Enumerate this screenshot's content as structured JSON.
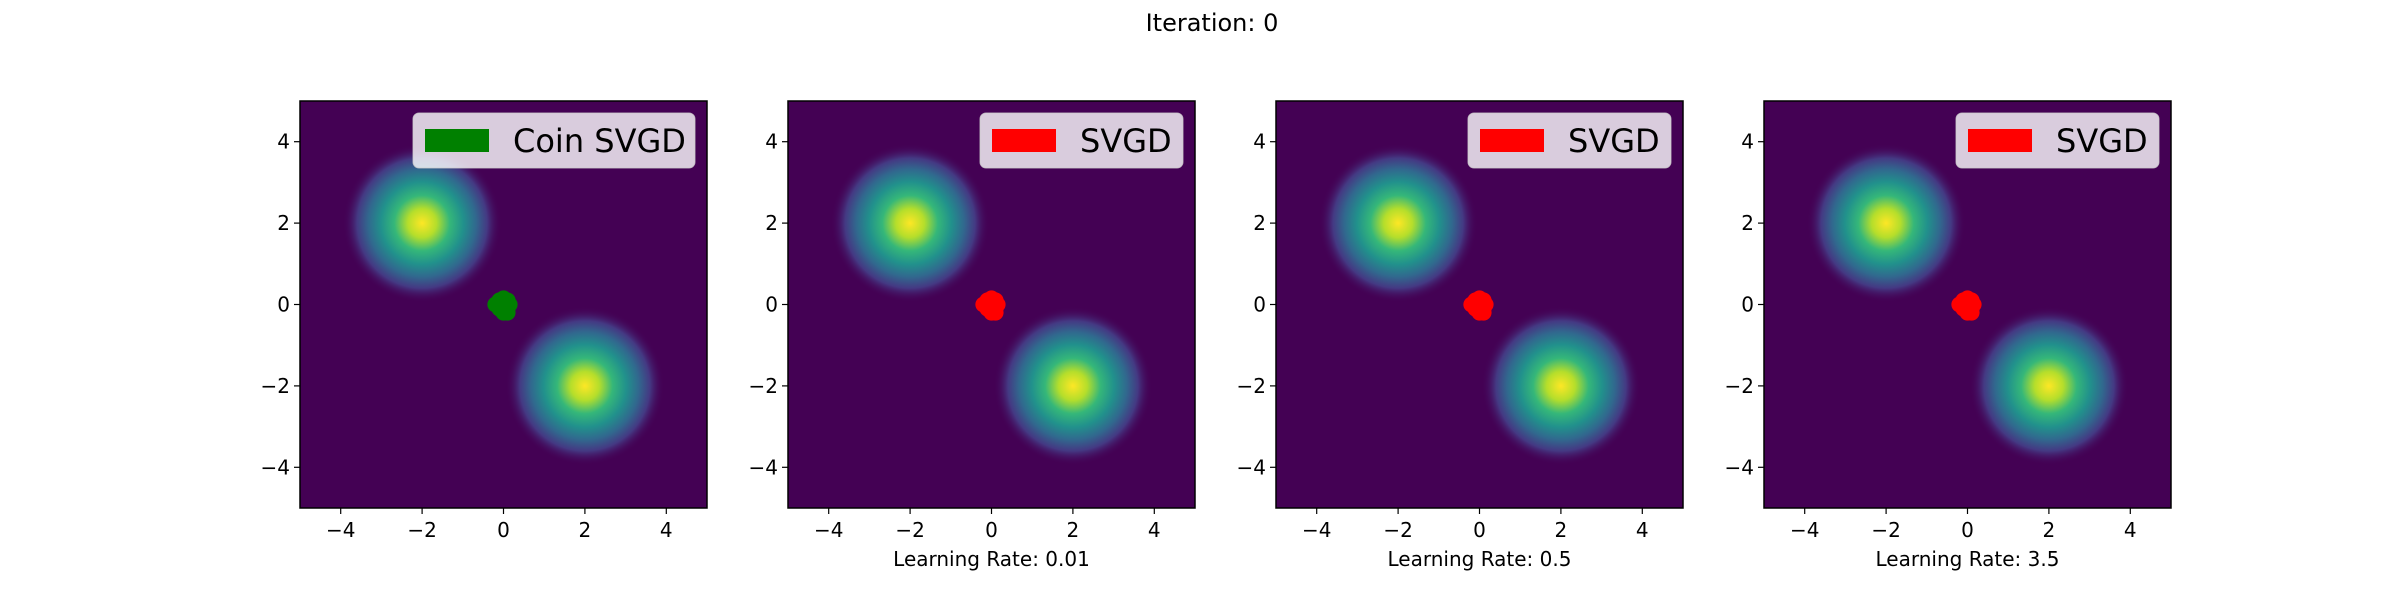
{
  "figure": {
    "suptitle": "Iteration: 0"
  },
  "colors": {
    "background_low": "#440154",
    "coin_svgd": "#008000",
    "svgd": "#ff0000",
    "legend_bg": "#ffffff"
  },
  "chart_data": [
    {
      "type": "scatter",
      "background": "density heatmap (viridis) of 2-component Gaussian mixture",
      "mixture_means": [
        [
          -2,
          2
        ],
        [
          2,
          -2
        ]
      ],
      "xlim": [
        -5,
        5
      ],
      "ylim": [
        -5,
        5
      ],
      "xticks": [
        "−4",
        "−2",
        "0",
        "2",
        "4"
      ],
      "yticks": [
        "−4",
        "−2",
        "0",
        "2",
        "4"
      ],
      "xlabel": "",
      "legend": {
        "label": "Coin SVGD",
        "color": "#008000",
        "placement": "upper right"
      },
      "series": [
        {
          "name": "Coin SVGD",
          "color": "#008000",
          "points": [
            [
              -0.2,
              0.0
            ],
            [
              -0.1,
              0.1
            ],
            [
              0.0,
              0.15
            ],
            [
              0.1,
              0.1
            ],
            [
              0.15,
              0.0
            ],
            [
              0.1,
              -0.1
            ],
            [
              0.0,
              -0.2
            ],
            [
              -0.1,
              -0.1
            ],
            [
              0.05,
              0.05
            ],
            [
              -0.05,
              -0.05
            ],
            [
              0.1,
              -0.2
            ],
            [
              0.0,
              0.0
            ]
          ]
        }
      ]
    },
    {
      "type": "scatter",
      "background": "density heatmap (viridis) of 2-component Gaussian mixture",
      "mixture_means": [
        [
          -2,
          2
        ],
        [
          2,
          -2
        ]
      ],
      "xlim": [
        -5,
        5
      ],
      "ylim": [
        -5,
        5
      ],
      "xticks": [
        "−4",
        "−2",
        "0",
        "2",
        "4"
      ],
      "yticks": [
        "−4",
        "−2",
        "0",
        "2",
        "4"
      ],
      "xlabel": "Learning Rate: 0.01",
      "legend": {
        "label": "SVGD",
        "color": "#ff0000",
        "placement": "upper right"
      },
      "series": [
        {
          "name": "SVGD",
          "color": "#ff0000",
          "points": [
            [
              -0.2,
              0.0
            ],
            [
              -0.1,
              0.1
            ],
            [
              0.0,
              0.15
            ],
            [
              0.1,
              0.1
            ],
            [
              0.15,
              0.0
            ],
            [
              0.1,
              -0.1
            ],
            [
              0.0,
              -0.2
            ],
            [
              -0.1,
              -0.1
            ],
            [
              0.05,
              0.05
            ],
            [
              -0.05,
              -0.05
            ],
            [
              0.1,
              -0.2
            ],
            [
              0.0,
              0.0
            ]
          ]
        }
      ]
    },
    {
      "type": "scatter",
      "background": "density heatmap (viridis) of 2-component Gaussian mixture",
      "mixture_means": [
        [
          -2,
          2
        ],
        [
          2,
          -2
        ]
      ],
      "xlim": [
        -5,
        5
      ],
      "ylim": [
        -5,
        5
      ],
      "xticks": [
        "−4",
        "−2",
        "0",
        "2",
        "4"
      ],
      "yticks": [
        "−4",
        "−2",
        "0",
        "2",
        "4"
      ],
      "xlabel": "Learning Rate: 0.5",
      "legend": {
        "label": "SVGD",
        "color": "#ff0000",
        "placement": "upper right"
      },
      "series": [
        {
          "name": "SVGD",
          "color": "#ff0000",
          "points": [
            [
              -0.2,
              0.0
            ],
            [
              -0.1,
              0.1
            ],
            [
              0.0,
              0.15
            ],
            [
              0.1,
              0.1
            ],
            [
              0.15,
              0.0
            ],
            [
              0.1,
              -0.1
            ],
            [
              0.0,
              -0.2
            ],
            [
              -0.1,
              -0.1
            ],
            [
              0.05,
              0.05
            ],
            [
              -0.05,
              -0.05
            ],
            [
              0.1,
              -0.2
            ],
            [
              0.0,
              0.0
            ]
          ]
        }
      ]
    },
    {
      "type": "scatter",
      "background": "density heatmap (viridis) of 2-component Gaussian mixture",
      "mixture_means": [
        [
          -2,
          2
        ],
        [
          2,
          -2
        ]
      ],
      "xlim": [
        -5,
        5
      ],
      "ylim": [
        -5,
        5
      ],
      "xticks": [
        "−4",
        "−2",
        "0",
        "2",
        "4"
      ],
      "yticks": [
        "−4",
        "−2",
        "0",
        "2",
        "4"
      ],
      "xlabel": "Learning Rate: 3.5",
      "legend": {
        "label": "SVGD",
        "color": "#ff0000",
        "placement": "upper right"
      },
      "series": [
        {
          "name": "SVGD",
          "color": "#ff0000",
          "points": [
            [
              -0.2,
              0.0
            ],
            [
              -0.1,
              0.1
            ],
            [
              0.0,
              0.15
            ],
            [
              0.1,
              0.1
            ],
            [
              0.15,
              0.0
            ],
            [
              0.1,
              -0.1
            ],
            [
              0.0,
              -0.2
            ],
            [
              -0.1,
              -0.1
            ],
            [
              0.05,
              0.05
            ],
            [
              -0.05,
              -0.05
            ],
            [
              0.1,
              -0.2
            ],
            [
              0.0,
              0.0
            ]
          ]
        }
      ]
    }
  ]
}
